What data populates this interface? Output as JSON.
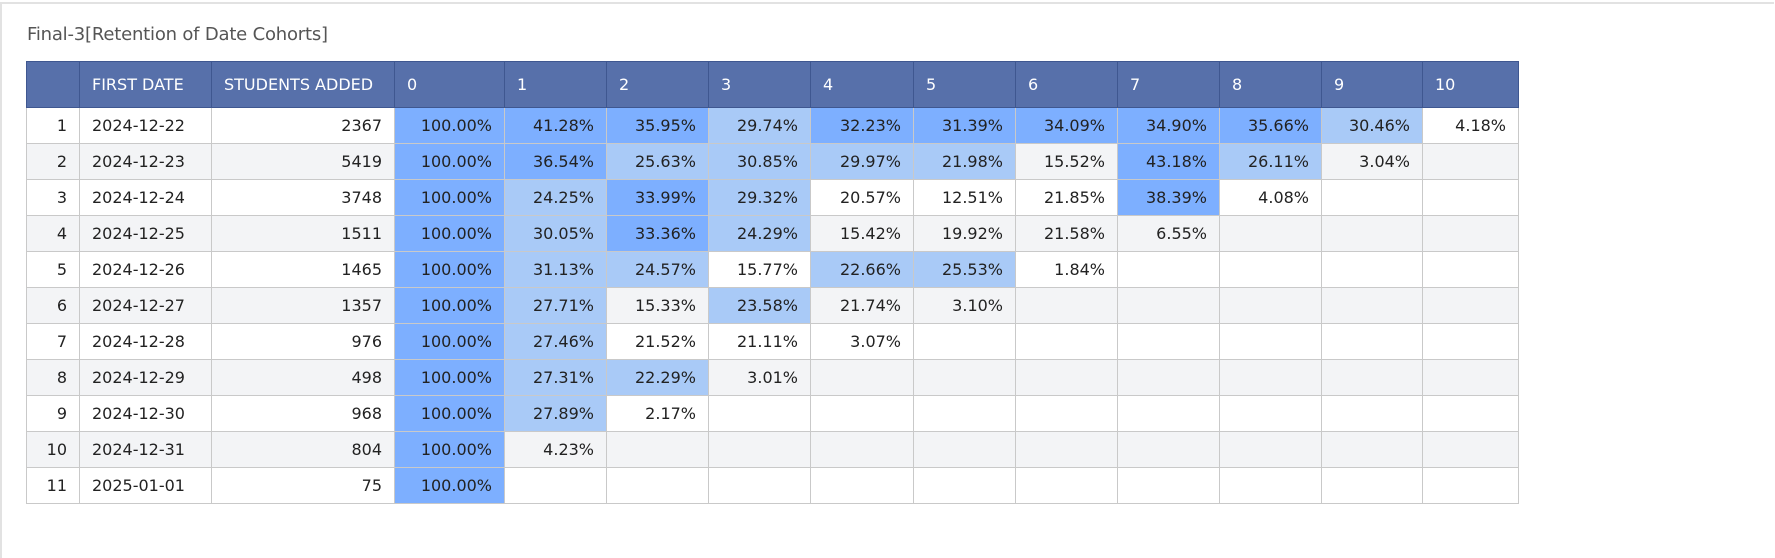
{
  "report": {
    "title": "Final-3[Retention of Date Cohorts]"
  },
  "colors": {
    "header_bg": "#5770aa",
    "level_high": "#7dafff",
    "level_mid": "#a9caf7",
    "level_none": "#ffffff",
    "zebra": "#f3f4f6"
  },
  "table": {
    "columns": [
      "",
      "FIRST DATE",
      "STUDENTS ADDED",
      "0",
      "1",
      "2",
      "3",
      "4",
      "5",
      "6",
      "7",
      "8",
      "9",
      "10"
    ],
    "rows": [
      {
        "index": "1",
        "first_date": "2024-12-22",
        "students_added": "2367",
        "values": [
          "100.00%",
          "41.28%",
          "35.95%",
          "29.74%",
          "32.23%",
          "31.39%",
          "34.09%",
          "34.90%",
          "35.66%",
          "30.46%",
          "4.18%"
        ],
        "levels": [
          2,
          2,
          2,
          1,
          2,
          2,
          2,
          2,
          2,
          1,
          0
        ]
      },
      {
        "index": "2",
        "first_date": "2024-12-23",
        "students_added": "5419",
        "values": [
          "100.00%",
          "36.54%",
          "25.63%",
          "30.85%",
          "29.97%",
          "21.98%",
          "15.52%",
          "43.18%",
          "26.11%",
          "3.04%"
        ],
        "levels": [
          2,
          2,
          1,
          1,
          1,
          1,
          0,
          2,
          1,
          0
        ]
      },
      {
        "index": "3",
        "first_date": "2024-12-24",
        "students_added": "3748",
        "values": [
          "100.00%",
          "24.25%",
          "33.99%",
          "29.32%",
          "20.57%",
          "12.51%",
          "21.85%",
          "38.39%",
          "4.08%"
        ],
        "levels": [
          2,
          1,
          2,
          1,
          0,
          0,
          0,
          2,
          0
        ]
      },
      {
        "index": "4",
        "first_date": "2024-12-25",
        "students_added": "1511",
        "values": [
          "100.00%",
          "30.05%",
          "33.36%",
          "24.29%",
          "15.42%",
          "19.92%",
          "21.58%",
          "6.55%"
        ],
        "levels": [
          2,
          1,
          2,
          1,
          0,
          0,
          0,
          0
        ]
      },
      {
        "index": "5",
        "first_date": "2024-12-26",
        "students_added": "1465",
        "values": [
          "100.00%",
          "31.13%",
          "24.57%",
          "15.77%",
          "22.66%",
          "25.53%",
          "1.84%"
        ],
        "levels": [
          2,
          1,
          1,
          0,
          1,
          1,
          0
        ]
      },
      {
        "index": "6",
        "first_date": "2024-12-27",
        "students_added": "1357",
        "values": [
          "100.00%",
          "27.71%",
          "15.33%",
          "23.58%",
          "21.74%",
          "3.10%"
        ],
        "levels": [
          2,
          1,
          0,
          1,
          0,
          0
        ]
      },
      {
        "index": "7",
        "first_date": "2024-12-28",
        "students_added": "976",
        "values": [
          "100.00%",
          "27.46%",
          "21.52%",
          "21.11%",
          "3.07%"
        ],
        "levels": [
          2,
          1,
          0,
          0,
          0
        ]
      },
      {
        "index": "8",
        "first_date": "2024-12-29",
        "students_added": "498",
        "values": [
          "100.00%",
          "27.31%",
          "22.29%",
          "3.01%"
        ],
        "levels": [
          2,
          1,
          1,
          0
        ]
      },
      {
        "index": "9",
        "first_date": "2024-12-30",
        "students_added": "968",
        "values": [
          "100.00%",
          "27.89%",
          "2.17%"
        ],
        "levels": [
          2,
          1,
          0
        ]
      },
      {
        "index": "10",
        "first_date": "2024-12-31",
        "students_added": "804",
        "values": [
          "100.00%",
          "4.23%"
        ],
        "levels": [
          2,
          0
        ]
      },
      {
        "index": "11",
        "first_date": "2025-01-01",
        "students_added": "75",
        "values": [
          "100.00%"
        ],
        "levels": [
          2
        ]
      }
    ]
  }
}
